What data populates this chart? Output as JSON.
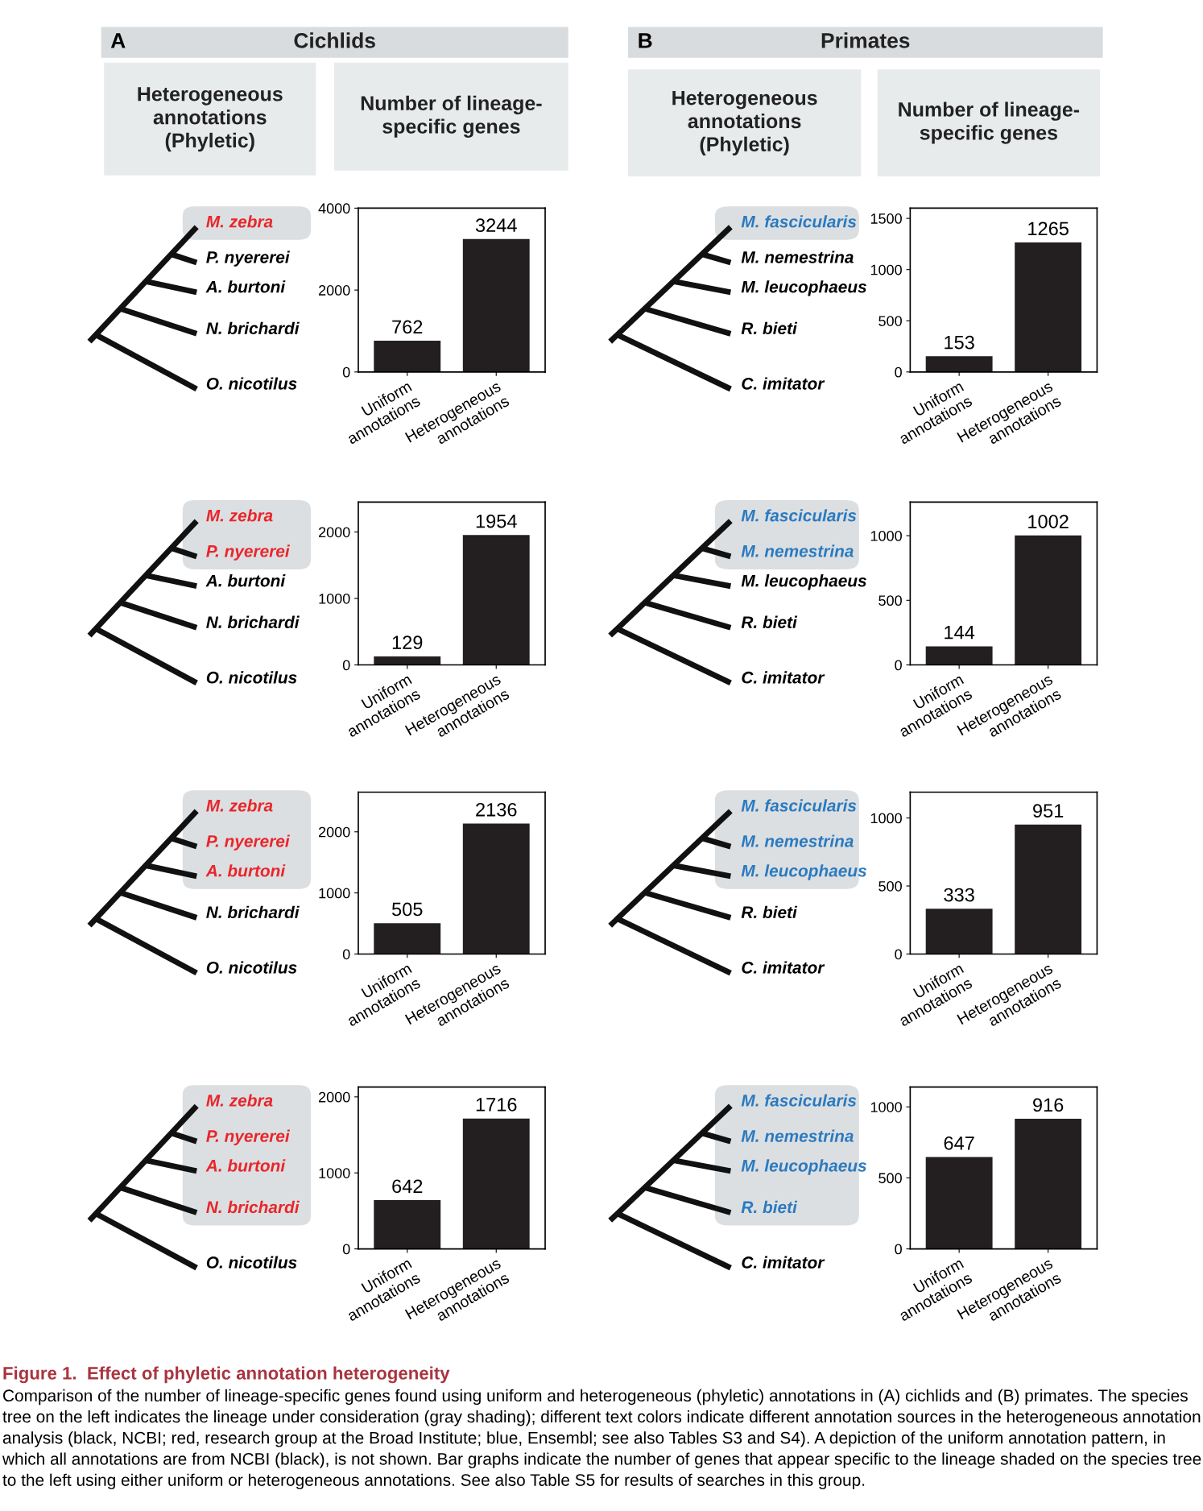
{
  "chart_data": [
    {
      "type": "other",
      "title": "Cichlids",
      "annotations": [
        "A"
      ]
    },
    {
      "type": "other",
      "title": "Primates",
      "annotations": [
        "B"
      ]
    },
    {
      "type": "other",
      "title": "Heterogeneous\nannotations\n(Phyletic)"
    },
    {
      "type": "other",
      "title": "Number of lineage-\nspecific genes"
    },
    {
      "type": "other",
      "title": "Heterogeneous\nannotations\n(Phyletic)"
    },
    {
      "type": "other",
      "title": "Number of lineage-\nspecific genes"
    },
    {
      "type": "other",
      "categories": [
        "M. zebra",
        "P. nyererei",
        "A. burtoni",
        "N. brichardi",
        "O. nicotilus"
      ],
      "colors": [
        "#e8262b",
        "#000000",
        "#000000",
        "#000000",
        "#000000"
      ]
    },
    {
      "type": "bar",
      "categories": [
        "Uniform\nannotations",
        "Heterogeneous\nannotations"
      ],
      "values": [
        762,
        3244
      ],
      "color": "#231f20",
      "ylim": [
        0,
        4000
      ],
      "yticks": [
        0,
        2000,
        4000
      ],
      "data_labels": true,
      "grid": false
    },
    {
      "type": "other",
      "categories": [
        "M. fascicularis",
        "M. nemestrina",
        "M. leucophaeus",
        "R. bieti",
        "C. imitator"
      ],
      "colors": [
        "#2a7ac0",
        "#000000",
        "#000000",
        "#000000",
        "#000000"
      ]
    },
    {
      "type": "bar",
      "categories": [
        "Uniform\nannotations",
        "Heterogeneous\nannotations"
      ],
      "values": [
        153,
        1265
      ],
      "color": "#231f20",
      "ylim": [
        0,
        1600
      ],
      "yticks": [
        0,
        500,
        1000,
        1500
      ],
      "data_labels": true,
      "grid": false
    },
    {
      "type": "other",
      "categories": [
        "M. zebra",
        "P. nyererei",
        "A. burtoni",
        "N. brichardi",
        "O. nicotilus"
      ],
      "colors": [
        "#e8262b",
        "#e8262b",
        "#000000",
        "#000000",
        "#000000"
      ]
    },
    {
      "type": "bar",
      "categories": [
        "Uniform\nannotations",
        "Heterogeneous\nannotations"
      ],
      "values": [
        129,
        1954
      ],
      "color": "#231f20",
      "ylim": [
        0,
        2450
      ],
      "yticks": [
        0,
        1000,
        2000
      ],
      "data_labels": true,
      "grid": false
    },
    {
      "type": "other",
      "categories": [
        "M. fascicularis",
        "M. nemestrina",
        "M. leucophaeus",
        "R. bieti",
        "C. imitator"
      ],
      "colors": [
        "#2a7ac0",
        "#2a7ac0",
        "#000000",
        "#000000",
        "#000000"
      ]
    },
    {
      "type": "bar",
      "categories": [
        "Uniform\nannotations",
        "Heterogeneous\nannotations"
      ],
      "values": [
        144,
        1002
      ],
      "color": "#231f20",
      "ylim": [
        0,
        1260
      ],
      "yticks": [
        0,
        500,
        1000
      ],
      "data_labels": true,
      "grid": false
    },
    {
      "type": "other",
      "categories": [
        "M. zebra",
        "P. nyererei",
        "A. burtoni",
        "N. brichardi",
        "O. nicotilus"
      ],
      "colors": [
        "#e8262b",
        "#e8262b",
        "#e8262b",
        "#000000",
        "#000000"
      ]
    },
    {
      "type": "bar",
      "categories": [
        "Uniform\nannotations",
        "Heterogeneous\nannotations"
      ],
      "values": [
        505,
        2136
      ],
      "color": "#231f20",
      "ylim": [
        0,
        2650
      ],
      "yticks": [
        0,
        1000,
        2000
      ],
      "data_labels": true,
      "grid": false
    },
    {
      "type": "other",
      "categories": [
        "M. fascicularis",
        "M. nemestrina",
        "M. leucophaeus",
        "R. bieti",
        "C. imitator"
      ],
      "colors": [
        "#2a7ac0",
        "#2a7ac0",
        "#2a7ac0",
        "#000000",
        "#000000"
      ]
    },
    {
      "type": "bar",
      "categories": [
        "Uniform\nannotations",
        "Heterogeneous\nannotations"
      ],
      "values": [
        333,
        951
      ],
      "color": "#231f20",
      "ylim": [
        0,
        1190
      ],
      "yticks": [
        0,
        500,
        1000
      ],
      "data_labels": true,
      "grid": false
    },
    {
      "type": "other",
      "categories": [
        "M. zebra",
        "P. nyererei",
        "A. burtoni",
        "N. brichardi",
        "O. nicotilus"
      ],
      "colors": [
        "#e8262b",
        "#e8262b",
        "#e8262b",
        "#e8262b",
        "#000000"
      ]
    },
    {
      "type": "bar",
      "categories": [
        "Uniform\nannotations",
        "Heterogeneous\nannotations"
      ],
      "values": [
        642,
        1716
      ],
      "color": "#231f20",
      "ylim": [
        0,
        2130
      ],
      "yticks": [
        0,
        1000,
        2000
      ],
      "data_labels": true,
      "grid": false
    },
    {
      "type": "other",
      "categories": [
        "M. fascicularis",
        "M. nemestrina",
        "M. leucophaeus",
        "R. bieti",
        "C. imitator"
      ],
      "colors": [
        "#2a7ac0",
        "#2a7ac0",
        "#2a7ac0",
        "#2a7ac0",
        "#000000"
      ]
    },
    {
      "type": "bar",
      "categories": [
        "Uniform\nannotations",
        "Heterogeneous\nannotations"
      ],
      "values": [
        647,
        916
      ],
      "color": "#231f20",
      "ylim": [
        0,
        1140
      ],
      "yticks": [
        0,
        500,
        1000
      ],
      "data_labels": true,
      "grid": false
    },
    {
      "type": "other",
      "title": "Figure 1.  Effect of phyletic annotation heterogeneity",
      "annotations": [
        "Comparison of the number of lineage-specific genes found using uniform and heterogeneous (phyletic) annotations in (A) cichlids and (B) primates. The species tree on the left indicates the lineage under consideration (gray shading); different text colors indicate different annotation sources in the heterogeneous annotation analysis (black, NCBI; red, research group at the Broad Institute; blue, Ensembl; see also Tables S3 and S4). A depiction of the uniform annotation pattern, in which all annotations are from NCBI (black), is not shown. Bar graphs indicate the number of genes that appear specific to the lineage shaded on the species tree to the left using either uniform or heterogeneous annotations. See also Table S5 for results of searches in this group."
      ]
    }
  ]
}
